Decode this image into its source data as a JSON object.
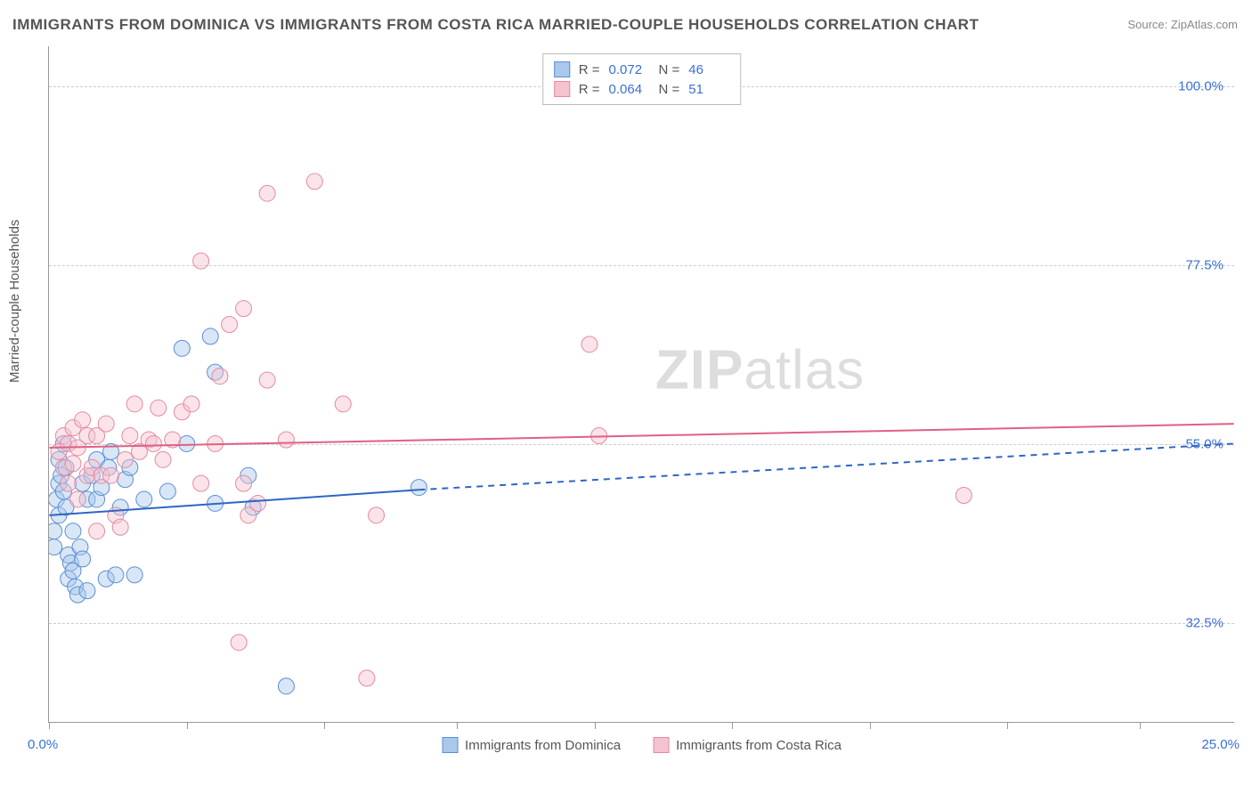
{
  "title": "IMMIGRANTS FROM DOMINICA VS IMMIGRANTS FROM COSTA RICA MARRIED-COUPLE HOUSEHOLDS CORRELATION CHART",
  "source": "Source: ZipAtlas.com",
  "ylabel": "Married-couple Households",
  "watermark_a": "ZIP",
  "watermark_b": "atlas",
  "chart": {
    "type": "scatter",
    "background_color": "#ffffff",
    "grid_color": "#cccccc",
    "text_color": "#555555",
    "value_color": "#3b6fd6",
    "xlim": [
      0,
      25
    ],
    "ylim": [
      20,
      105
    ],
    "xticks": [
      0,
      2.9,
      5.8,
      8.6,
      11.5,
      14.4,
      17.3,
      20.2,
      23.0
    ],
    "yticks": [
      32.5,
      55.0,
      77.5,
      100.0
    ],
    "ytick_labels": [
      "32.5%",
      "55.0%",
      "77.5%",
      "100.0%"
    ],
    "xaxis_left_label": "0.0%",
    "xaxis_right_label": "25.0%",
    "marker_radius": 9,
    "marker_opacity": 0.45,
    "line_width": 2,
    "series": [
      {
        "name": "Immigrants from Dominica",
        "color_fill": "#a9c8ec",
        "color_stroke": "#5a8fd6",
        "line_color": "#2e66c4",
        "r": "0.072",
        "n": "46",
        "trend": {
          "x1": 0,
          "y1": 46.0,
          "x2_solid": 7.8,
          "y2_solid": 49.2,
          "x2": 25,
          "y2": 55.0
        },
        "points": [
          [
            0.1,
            42
          ],
          [
            0.1,
            44
          ],
          [
            0.15,
            48
          ],
          [
            0.2,
            53
          ],
          [
            0.2,
            50
          ],
          [
            0.2,
            46
          ],
          [
            0.25,
            51
          ],
          [
            0.3,
            49
          ],
          [
            0.3,
            55
          ],
          [
            0.35,
            52
          ],
          [
            0.35,
            47
          ],
          [
            0.4,
            41
          ],
          [
            0.4,
            38
          ],
          [
            0.45,
            40
          ],
          [
            0.5,
            39
          ],
          [
            0.5,
            44
          ],
          [
            0.55,
            37
          ],
          [
            0.6,
            36
          ],
          [
            0.65,
            42
          ],
          [
            0.7,
            40.5
          ],
          [
            0.7,
            50
          ],
          [
            0.8,
            48
          ],
          [
            0.8,
            36.5
          ],
          [
            0.9,
            51
          ],
          [
            1.0,
            48
          ],
          [
            1.0,
            53
          ],
          [
            1.1,
            49.5
          ],
          [
            1.2,
            38
          ],
          [
            1.25,
            52
          ],
          [
            1.3,
            54
          ],
          [
            1.4,
            38.5
          ],
          [
            1.5,
            47
          ],
          [
            1.6,
            50.5
          ],
          [
            1.7,
            52
          ],
          [
            1.8,
            38.5
          ],
          [
            2.0,
            48
          ],
          [
            2.5,
            49
          ],
          [
            2.8,
            67
          ],
          [
            2.9,
            55
          ],
          [
            3.4,
            68.5
          ],
          [
            3.5,
            64
          ],
          [
            3.5,
            47.5
          ],
          [
            4.2,
            51
          ],
          [
            4.3,
            47
          ],
          [
            5.0,
            24.5
          ],
          [
            7.8,
            49.5
          ]
        ]
      },
      {
        "name": "Immigrants from Costa Rica",
        "color_fill": "#f4c3cf",
        "color_stroke": "#e48aa1",
        "line_color": "#e06083",
        "r": "0.064",
        "n": "51",
        "trend": {
          "x1": 0,
          "y1": 54.5,
          "x2_solid": 25,
          "y2_solid": 57.5,
          "x2": 25,
          "y2": 57.5
        },
        "points": [
          [
            0.2,
            54
          ],
          [
            0.3,
            56
          ],
          [
            0.3,
            52
          ],
          [
            0.4,
            50
          ],
          [
            0.4,
            55
          ],
          [
            0.5,
            57
          ],
          [
            0.5,
            52.5
          ],
          [
            0.6,
            48
          ],
          [
            0.6,
            54.5
          ],
          [
            0.7,
            58
          ],
          [
            0.8,
            51
          ],
          [
            0.8,
            56
          ],
          [
            0.9,
            52
          ],
          [
            1.0,
            56
          ],
          [
            1.0,
            44
          ],
          [
            1.1,
            51
          ],
          [
            1.2,
            57.5
          ],
          [
            1.3,
            51
          ],
          [
            1.4,
            46
          ],
          [
            1.5,
            44.5
          ],
          [
            1.6,
            53
          ],
          [
            1.7,
            56
          ],
          [
            1.8,
            60
          ],
          [
            1.9,
            54
          ],
          [
            2.1,
            55.5
          ],
          [
            2.2,
            55
          ],
          [
            2.3,
            59.5
          ],
          [
            2.4,
            53
          ],
          [
            2.6,
            55.5
          ],
          [
            2.8,
            59
          ],
          [
            3.0,
            60
          ],
          [
            3.2,
            78
          ],
          [
            3.2,
            50
          ],
          [
            3.5,
            55
          ],
          [
            3.6,
            63.5
          ],
          [
            3.8,
            70
          ],
          [
            4.0,
            30
          ],
          [
            4.1,
            72
          ],
          [
            4.1,
            50
          ],
          [
            4.2,
            46
          ],
          [
            4.4,
            47.5
          ],
          [
            4.6,
            63
          ],
          [
            4.6,
            86.5
          ],
          [
            5.0,
            55.5
          ],
          [
            5.6,
            88
          ],
          [
            6.2,
            60
          ],
          [
            6.7,
            25.5
          ],
          [
            6.9,
            46
          ],
          [
            11.4,
            67.5
          ],
          [
            11.6,
            56
          ],
          [
            19.3,
            48.5
          ]
        ]
      }
    ],
    "bottom_legend": [
      {
        "label": "Immigrants from Dominica",
        "fill": "#a9c8ec",
        "stroke": "#5a8fd6"
      },
      {
        "label": "Immigrants from Costa Rica",
        "fill": "#f4c3cf",
        "stroke": "#e48aa1"
      }
    ]
  }
}
